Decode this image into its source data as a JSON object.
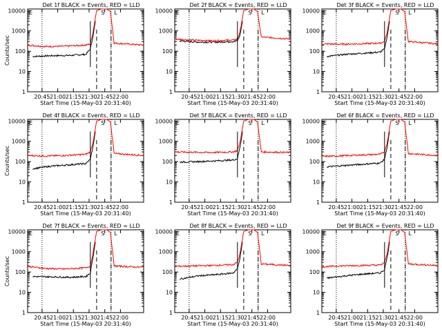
{
  "chart_data": [
    {
      "type": "line",
      "title": "Det 1f BLACK = Events, RED = LLD",
      "xlabel": "Start Time (15-May-03 20:31:40)",
      "ylabel": "Counts/sec",
      "y_scale": "log",
      "ylim": [
        1,
        12000
      ],
      "xlim": [
        20.52,
        22.37
      ],
      "x_ticks": [
        "20:45",
        "21:00",
        "21:15",
        "21:30",
        "21:45",
        "22:00"
      ],
      "y_ticks": [
        "1",
        "10",
        "100",
        "1000",
        "10000"
      ],
      "markers": {
        "S": "S",
        "E": "E",
        "L": "L"
      },
      "series": [
        {
          "name": "Events",
          "color": "#000000",
          "x": [
            20.6,
            20.9,
            21.2,
            21.45,
            21.52,
            21.56,
            21.6
          ],
          "y": [
            55,
            60,
            62,
            70,
            130,
            500,
            3000
          ]
        },
        {
          "name": "LLD",
          "color": "#ff0000",
          "x": [
            20.52,
            20.8,
            21.1,
            21.45,
            21.52,
            21.56,
            21.62,
            21.7,
            21.78,
            21.84,
            21.9,
            22.37
          ],
          "y": [
            200,
            170,
            175,
            200,
            230,
            800,
            10000,
            12000,
            12000,
            9000,
            250,
            200
          ]
        }
      ]
    },
    {
      "type": "line",
      "title": "Det 2f BLACK = Events, RED = LLD",
      "xlabel": "Start Time (15-May-03 20:31:40)",
      "ylabel": "",
      "y_scale": "log",
      "ylim": [
        1,
        12000
      ],
      "xlim": [
        20.52,
        22.37
      ],
      "x_ticks": [
        "20:45",
        "21:00",
        "21:15",
        "21:30",
        "21:45",
        "22:00"
      ],
      "y_ticks": [
        "1",
        "10",
        "100",
        "1000",
        "10000"
      ],
      "markers": {
        "S": "S",
        "E": "E",
        "L": "L"
      },
      "series": [
        {
          "name": "Events",
          "color": "#000000",
          "x": [
            20.6,
            20.9,
            21.2,
            21.45,
            21.52,
            21.56,
            21.6
          ],
          "y": [
            320,
            280,
            280,
            300,
            320,
            600,
            3000
          ]
        },
        {
          "name": "LLD",
          "color": "#ff0000",
          "x": [
            20.52,
            20.8,
            21.1,
            21.45,
            21.52,
            21.56,
            21.62,
            21.7,
            21.78,
            21.84,
            21.9,
            22.37
          ],
          "y": [
            400,
            350,
            330,
            350,
            400,
            900,
            10000,
            12000,
            12000,
            9000,
            500,
            400
          ]
        }
      ]
    },
    {
      "type": "line",
      "title": "Det 3f BLACK = Events, RED = LLD",
      "xlabel": "Start Time (15-May-03 20:31:40)",
      "ylabel": "",
      "y_scale": "log",
      "ylim": [
        1,
        12000
      ],
      "xlim": [
        20.52,
        22.37
      ],
      "x_ticks": [
        "20:45",
        "21:00",
        "21:15",
        "21:30",
        "21:45",
        "22:00"
      ],
      "y_ticks": [
        "1",
        "10",
        "100",
        "1000",
        "10000"
      ],
      "markers": {
        "S": "S",
        "E": "E",
        "L": "L"
      },
      "series": [
        {
          "name": "Events",
          "color": "#000000",
          "x": [
            20.6,
            20.9,
            21.2,
            21.45,
            21.52,
            21.56,
            21.6
          ],
          "y": [
            55,
            70,
            80,
            90,
            130,
            500,
            3000
          ]
        },
        {
          "name": "LLD",
          "color": "#ff0000",
          "x": [
            20.52,
            20.8,
            21.1,
            21.45,
            21.52,
            21.56,
            21.62,
            21.7,
            21.78,
            21.84,
            21.9,
            22.37
          ],
          "y": [
            230,
            220,
            230,
            250,
            300,
            800,
            10000,
            12000,
            12000,
            9000,
            300,
            230
          ]
        }
      ]
    },
    {
      "type": "line",
      "title": "Det 4f BLACK = Events, RED = LLD",
      "xlabel": "Start Time (15-May-03 20:31:40)",
      "ylabel": "Counts/sec",
      "y_scale": "log",
      "ylim": [
        1,
        12000
      ],
      "xlim": [
        20.52,
        22.37
      ],
      "x_ticks": [
        "20:45",
        "21:00",
        "21:15",
        "21:30",
        "21:45",
        "22:00"
      ],
      "y_ticks": [
        "1",
        "10",
        "100",
        "1000",
        "10000"
      ],
      "markers": {
        "S": "S",
        "E": "E",
        "L": "L"
      },
      "series": [
        {
          "name": "Events",
          "color": "#000000",
          "x": [
            20.6,
            20.9,
            21.2,
            21.45,
            21.52,
            21.56,
            21.6
          ],
          "y": [
            45,
            60,
            70,
            80,
            130,
            500,
            3000
          ]
        },
        {
          "name": "LLD",
          "color": "#ff0000",
          "x": [
            20.52,
            20.8,
            21.1,
            21.45,
            21.52,
            21.56,
            21.62,
            21.7,
            21.78,
            21.84,
            21.9,
            22.37
          ],
          "y": [
            200,
            190,
            200,
            230,
            300,
            800,
            10000,
            12000,
            12000,
            9000,
            250,
            200
          ]
        }
      ]
    },
    {
      "type": "line",
      "title": "Det 5f BLACK = Events, RED = LLD",
      "xlabel": "Start Time (15-May-03 20:31:40)",
      "ylabel": "",
      "y_scale": "log",
      "ylim": [
        1,
        12000
      ],
      "xlim": [
        20.52,
        22.37
      ],
      "x_ticks": [
        "20:45",
        "21:00",
        "21:15",
        "21:30",
        "21:45",
        "22:00"
      ],
      "y_ticks": [
        "1",
        "10",
        "100",
        "1000",
        "10000"
      ],
      "markers": {
        "S": "S",
        "E": "E",
        "L": "L"
      },
      "series": [
        {
          "name": "Events",
          "color": "#000000",
          "x": [
            20.6,
            20.9,
            21.2,
            21.45,
            21.52,
            21.56,
            21.6
          ],
          "y": [
            95,
            100,
            110,
            120,
            140,
            500,
            3000
          ]
        },
        {
          "name": "LLD",
          "color": "#ff0000",
          "x": [
            20.52,
            20.8,
            21.1,
            21.45,
            21.52,
            21.56,
            21.62,
            21.7,
            21.78,
            21.84,
            21.9,
            22.37
          ],
          "y": [
            300,
            290,
            280,
            300,
            350,
            900,
            10000,
            12000,
            12000,
            9000,
            300,
            280
          ]
        }
      ]
    },
    {
      "type": "line",
      "title": "Det 6f BLACK = Events, RED = LLD",
      "xlabel": "Start Time (15-May-03 20:31:40)",
      "ylabel": "",
      "y_scale": "log",
      "ylim": [
        1,
        12000
      ],
      "xlim": [
        20.52,
        22.37
      ],
      "x_ticks": [
        "20:45",
        "21:00",
        "21:15",
        "21:30",
        "21:45",
        "22:00"
      ],
      "y_ticks": [
        "1",
        "10",
        "100",
        "1000",
        "10000"
      ],
      "markers": {
        "S": "S",
        "E": "E",
        "L": "L"
      },
      "series": [
        {
          "name": "Events",
          "color": "#000000",
          "x": [
            20.6,
            20.9,
            21.2,
            21.45,
            21.52,
            21.56,
            21.6
          ],
          "y": [
            55,
            65,
            75,
            85,
            130,
            500,
            3000
          ]
        },
        {
          "name": "LLD",
          "color": "#ff0000",
          "x": [
            20.52,
            20.8,
            21.1,
            21.45,
            21.52,
            21.56,
            21.62,
            21.7,
            21.78,
            21.84,
            21.9,
            22.37
          ],
          "y": [
            180,
            190,
            210,
            230,
            300,
            800,
            10000,
            12000,
            12000,
            9000,
            250,
            200
          ]
        }
      ]
    },
    {
      "type": "line",
      "title": "Det 7f BLACK = Events, RED = LLD",
      "xlabel": "Start Time (15-May-03 20:31:40)",
      "ylabel": "Counts/sec",
      "y_scale": "log",
      "ylim": [
        1,
        12000
      ],
      "xlim": [
        20.52,
        22.37
      ],
      "x_ticks": [
        "20:45",
        "21:00",
        "21:15",
        "21:30",
        "21:45",
        "22:00"
      ],
      "y_ticks": [
        "1",
        "10",
        "100",
        "1000",
        "10000"
      ],
      "markers": {
        "S": "S",
        "E": "E",
        "L": "L"
      },
      "series": [
        {
          "name": "Events",
          "color": "#000000",
          "x": [
            20.6,
            20.9,
            21.2,
            21.45,
            21.52,
            21.56,
            21.6
          ],
          "y": [
            60,
            58,
            55,
            60,
            90,
            500,
            3000
          ]
        },
        {
          "name": "LLD",
          "color": "#ff0000",
          "x": [
            20.52,
            20.8,
            21.1,
            21.45,
            21.52,
            21.56,
            21.62,
            21.7,
            21.78,
            21.84,
            21.9,
            22.37
          ],
          "y": [
            190,
            150,
            140,
            160,
            200,
            800,
            10000,
            12000,
            12000,
            9000,
            200,
            170
          ]
        }
      ]
    },
    {
      "type": "line",
      "title": "Det 8f BLACK = Events, RED = LLD",
      "xlabel": "Start Time (15-May-03 20:31:40)",
      "ylabel": "",
      "y_scale": "log",
      "ylim": [
        1,
        12000
      ],
      "xlim": [
        20.52,
        22.37
      ],
      "x_ticks": [
        "20:45",
        "21:00",
        "21:15",
        "21:30",
        "21:45",
        "22:00"
      ],
      "y_ticks": [
        "1",
        "10",
        "100",
        "1000",
        "10000"
      ],
      "markers": {
        "S": "S",
        "E": "E",
        "L": "L"
      },
      "series": [
        {
          "name": "Events",
          "color": "#000000",
          "x": [
            20.6,
            20.9,
            21.2,
            21.45,
            21.52,
            21.56,
            21.6
          ],
          "y": [
            45,
            65,
            75,
            90,
            140,
            500,
            3000
          ]
        },
        {
          "name": "LLD",
          "color": "#ff0000",
          "x": [
            20.52,
            20.8,
            21.1,
            21.45,
            21.52,
            21.56,
            21.62,
            21.7,
            21.78,
            21.84,
            21.9,
            22.37
          ],
          "y": [
            190,
            200,
            210,
            230,
            300,
            800,
            10000,
            12000,
            12000,
            9000,
            250,
            210
          ]
        }
      ]
    },
    {
      "type": "line",
      "title": "Det 9f BLACK = Events, RED = LLD",
      "xlabel": "Start Time (15-May-03 20:31:40)",
      "ylabel": "",
      "y_scale": "log",
      "ylim": [
        1,
        12000
      ],
      "xlim": [
        20.52,
        22.37
      ],
      "x_ticks": [
        "20:45",
        "21:00",
        "21:15",
        "21:30",
        "21:45",
        "22:00"
      ],
      "y_ticks": [
        "1",
        "10",
        "100",
        "1000",
        "10000"
      ],
      "markers": {
        "S": "S",
        "E": "E",
        "L": "L"
      },
      "series": [
        {
          "name": "Events",
          "color": "#000000",
          "x": [
            20.6,
            20.9,
            21.2,
            21.45,
            21.52,
            21.56,
            21.6
          ],
          "y": [
            50,
            65,
            80,
            90,
            130,
            500,
            3000
          ]
        },
        {
          "name": "LLD",
          "color": "#ff0000",
          "x": [
            20.52,
            20.8,
            21.1,
            21.45,
            21.52,
            21.56,
            21.62,
            21.7,
            21.78,
            21.84,
            21.9,
            22.37
          ],
          "y": [
            180,
            200,
            210,
            220,
            280,
            800,
            10000,
            12000,
            12000,
            9000,
            250,
            210
          ]
        }
      ]
    }
  ],
  "vertical_lines": {
    "dotted_at": [
      20.75,
      21.85
    ],
    "dashed_at": [
      21.62,
      21.85
    ],
    "solid_at": 21.52
  }
}
